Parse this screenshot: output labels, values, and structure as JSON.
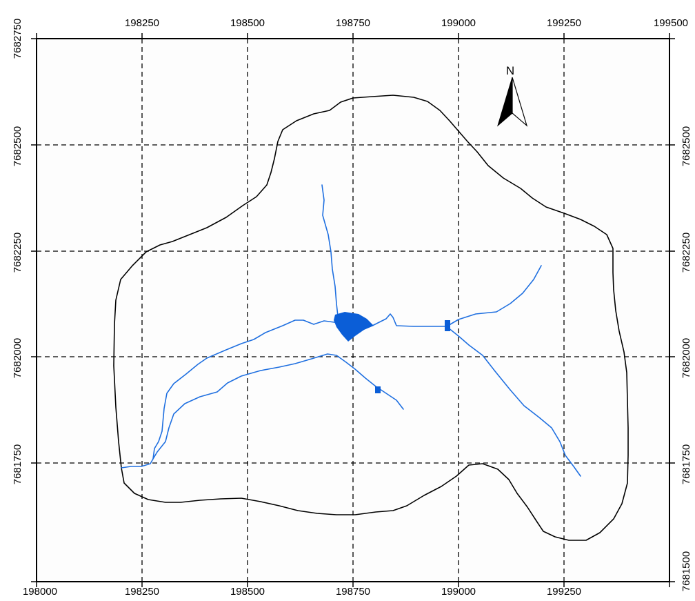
{
  "colors": {
    "frame": "#000000",
    "grid": "#000000",
    "boundary": "#000000",
    "stream": "#1e6fe0",
    "reservoir": "#0b5ed7",
    "background": "#fdfdfd"
  },
  "axes": {
    "x_range": [
      198000,
      199500
    ],
    "y_range": [
      7681500,
      7682750
    ],
    "x_tick_values": [
      198000,
      198250,
      198500,
      198750,
      199000,
      199250,
      199500
    ],
    "y_tick_values": [
      7681500,
      7681750,
      7682000,
      7682250,
      7682500,
      7682750
    ],
    "x_labels_top": [
      "198250",
      "198500",
      "198750",
      "199000",
      "199250",
      "199500"
    ],
    "x_labels_bottom": [
      "198000",
      "198250",
      "198500",
      "198750",
      "199000",
      "199250"
    ],
    "y_labels_left": [
      "7682750",
      "7682500",
      "7682250",
      "7682000",
      "7681750"
    ],
    "y_labels_right": [
      "7682500",
      "7682250",
      "7682000",
      "7681750",
      "7681500"
    ]
  },
  "north_arrow": {
    "label": "N"
  }
}
